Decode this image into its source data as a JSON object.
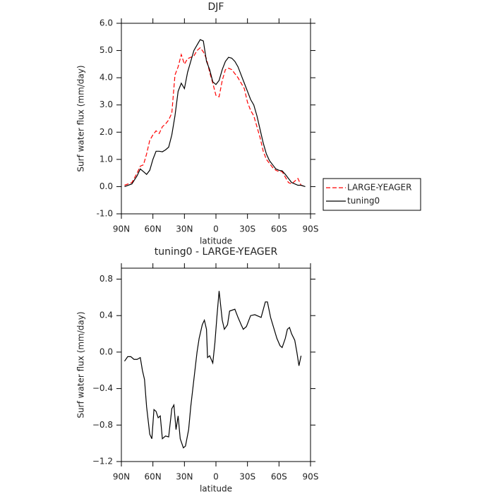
{
  "chart_data": [
    {
      "type": "line",
      "title": "DJF",
      "xlabel": "latitude",
      "ylabel": "Surf water flux (mm/day)",
      "xlim": [
        90,
        -90
      ],
      "ylim": [
        -1,
        6
      ],
      "xticks": [
        {
          "value": 90,
          "label": "90N"
        },
        {
          "value": 60,
          "label": "60N"
        },
        {
          "value": 30,
          "label": "30N"
        },
        0,
        {
          "value": -30,
          "label": "30S"
        },
        {
          "value": -60,
          "label": "60S"
        },
        {
          "value": -90,
          "label": "90S"
        }
      ],
      "yticks": [
        {
          "value": -1,
          "label": "-1.0"
        },
        {
          "value": 0,
          "label": "0.0"
        },
        {
          "value": 1,
          "label": "1.0"
        },
        {
          "value": 2,
          "label": "2.0"
        },
        {
          "value": 3,
          "label": "3.0"
        },
        {
          "value": 4,
          "label": "4.0"
        },
        {
          "value": 5,
          "label": "5.0"
        },
        {
          "value": 6,
          "label": "6.0"
        }
      ],
      "legend": "outside-right",
      "x": [
        87,
        80,
        75,
        72,
        69,
        66,
        63,
        60,
        57,
        54,
        51,
        48,
        45,
        42,
        39,
        36,
        33,
        30,
        27,
        24,
        21,
        18,
        15,
        12,
        9,
        6,
        3,
        0,
        -3,
        -6,
        -9,
        -12,
        -15,
        -18,
        -21,
        -24,
        -27,
        -30,
        -33,
        -36,
        -39,
        -42,
        -45,
        -48,
        -51,
        -54,
        -57,
        -60,
        -63,
        -66,
        -69,
        -72,
        -75,
        -78,
        -81,
        -85
      ],
      "series": [
        {
          "name": "LARGE-YEAGER",
          "color": "#ff0000",
          "dashed": true,
          "values": [
            0.05,
            0.15,
            0.5,
            0.75,
            0.8,
            1.2,
            1.7,
            1.9,
            2.05,
            1.95,
            2.2,
            2.3,
            2.45,
            2.7,
            4.1,
            4.4,
            4.85,
            4.5,
            4.7,
            4.75,
            4.8,
            5.0,
            5.1,
            4.95,
            4.7,
            4.2,
            3.8,
            3.35,
            3.3,
            3.9,
            4.3,
            4.35,
            4.3,
            4.15,
            4.0,
            3.8,
            3.6,
            3.1,
            2.8,
            2.6,
            2.2,
            1.8,
            1.3,
            1.0,
            0.85,
            0.7,
            0.6,
            0.55,
            0.55,
            0.35,
            0.15,
            0.1,
            0.2,
            0.3,
            0.05,
            0.0
          ]
        },
        {
          "name": "tuning0",
          "color": "#000000",
          "dashed": false,
          "values": [
            0.0,
            0.1,
            0.4,
            0.65,
            0.55,
            0.45,
            0.6,
            1.0,
            1.3,
            1.3,
            1.28,
            1.35,
            1.45,
            1.9,
            2.6,
            3.5,
            3.8,
            3.6,
            4.2,
            4.6,
            5.0,
            5.2,
            5.4,
            5.35,
            4.6,
            4.3,
            3.85,
            3.75,
            3.9,
            4.3,
            4.6,
            4.75,
            4.72,
            4.6,
            4.4,
            4.1,
            3.8,
            3.5,
            3.2,
            3.0,
            2.6,
            2.1,
            1.6,
            1.2,
            0.95,
            0.8,
            0.65,
            0.6,
            0.58,
            0.45,
            0.3,
            0.15,
            0.1,
            0.05,
            0.05,
            0.0
          ]
        }
      ]
    },
    {
      "type": "line",
      "title": "tuning0 - LARGE-YEAGER",
      "xlabel": "latitude",
      "ylabel": "Surf water flux (mm/day)",
      "xlim": [
        90,
        -90
      ],
      "ylim": [
        -1.2,
        0.92
      ],
      "xticks": [
        {
          "value": 90,
          "label": "90N"
        },
        {
          "value": 60,
          "label": "60N"
        },
        {
          "value": 30,
          "label": "30N"
        },
        0,
        {
          "value": -30,
          "label": "30S"
        },
        {
          "value": -60,
          "label": "60S"
        },
        {
          "value": -90,
          "label": "90S"
        }
      ],
      "yticks": [
        {
          "value": -1.2,
          "label": "−1.2"
        },
        {
          "value": -0.8,
          "label": "−0.8"
        },
        {
          "value": -0.4,
          "label": "−0.4"
        },
        {
          "value": 0,
          "label": "0.0"
        },
        0.4,
        0.8
      ],
      "x": [
        87,
        84,
        81,
        78,
        75,
        72,
        70,
        68,
        66,
        63,
        61,
        59,
        57,
        55,
        53,
        51,
        48,
        45,
        42,
        40,
        38,
        36,
        34,
        31,
        29,
        26,
        24,
        21,
        18,
        16,
        13,
        11,
        9,
        8,
        6,
        3,
        1,
        -1,
        -3,
        -6,
        -8,
        -11,
        -13,
        -18,
        -21,
        -24,
        -26,
        -29,
        -33,
        -37,
        -43,
        -47,
        -49,
        -52,
        -58,
        -61,
        -63,
        -66,
        -68,
        -70,
        -72,
        -75,
        -77,
        -79,
        -81
      ],
      "series": [
        {
          "name": "tuning0 - LARGE-YEAGER",
          "color": "#000000",
          "dashed": false,
          "values": [
            -0.1,
            -0.05,
            -0.05,
            -0.08,
            -0.08,
            -0.06,
            -0.2,
            -0.3,
            -0.6,
            -0.9,
            -0.95,
            -0.63,
            -0.65,
            -0.72,
            -0.7,
            -0.95,
            -0.92,
            -0.93,
            -0.62,
            -0.58,
            -0.85,
            -0.7,
            -0.95,
            -1.05,
            -1.03,
            -0.85,
            -0.6,
            -0.3,
            0.0,
            0.15,
            0.3,
            0.35,
            0.25,
            -0.06,
            -0.04,
            -0.12,
            0.1,
            0.4,
            0.67,
            0.35,
            0.25,
            0.3,
            0.45,
            0.47,
            0.38,
            0.3,
            0.25,
            0.28,
            0.4,
            0.41,
            0.38,
            0.55,
            0.55,
            0.38,
            0.15,
            0.07,
            0.05,
            0.15,
            0.25,
            0.27,
            0.2,
            0.13,
            0.0,
            -0.15,
            -0.04
          ]
        }
      ]
    }
  ]
}
